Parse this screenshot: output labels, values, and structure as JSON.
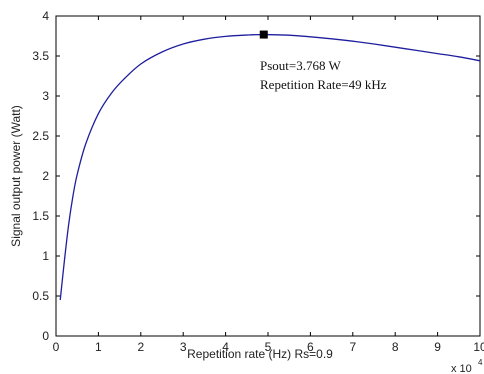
{
  "chart_data": {
    "type": "line",
    "xlabel": "Repetition rate (Hz)  Rs=0.9",
    "ylabel": "Signal output power (Watt)",
    "xlim": [
      0,
      10
    ],
    "ylim": [
      0,
      4
    ],
    "x_scale_base": "x 10",
    "x_scale_exponent": "4",
    "grid": false,
    "legend": "none",
    "line_color": "#1f1f9e",
    "x_ticks": [
      "0",
      "1",
      "2",
      "3",
      "4",
      "5",
      "6",
      "7",
      "8",
      "9",
      "10"
    ],
    "y_ticks": [
      "0",
      "0.5",
      "1",
      "1.5",
      "2",
      "2.5",
      "3",
      "3.5",
      "4"
    ],
    "series": [
      {
        "x": [
          0.1,
          0.2,
          0.3,
          0.4,
          0.5,
          0.7,
          1.0,
          1.3,
          1.6,
          2.0,
          2.5,
          3.0,
          3.5,
          4.0,
          4.5,
          4.9,
          5.5,
          6.0,
          6.5,
          7.0,
          7.5,
          8.0,
          8.5,
          9.0,
          9.5,
          10.0
        ],
        "y": [
          0.45,
          0.95,
          1.4,
          1.75,
          2.02,
          2.4,
          2.78,
          3.03,
          3.21,
          3.4,
          3.55,
          3.65,
          3.71,
          3.745,
          3.762,
          3.768,
          3.76,
          3.74,
          3.715,
          3.685,
          3.65,
          3.61,
          3.57,
          3.53,
          3.49,
          3.44
        ]
      }
    ],
    "marker": {
      "x": 4.9,
      "y": 3.768
    },
    "annotations": [
      "Psout=3.768 W",
      "Repetition Rate=49 kHz"
    ]
  }
}
